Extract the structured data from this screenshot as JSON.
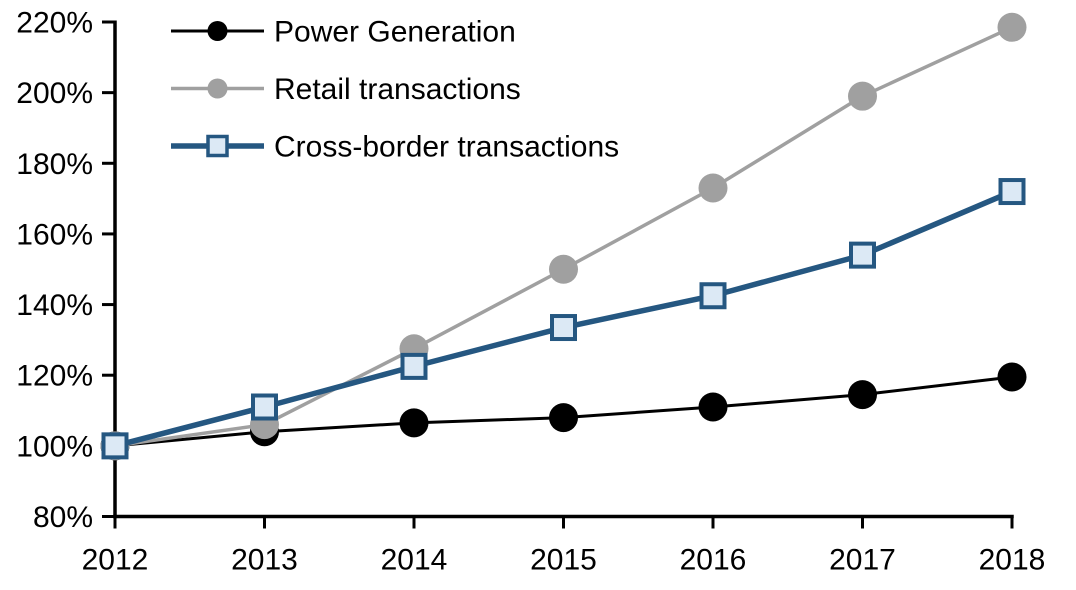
{
  "chart_data": {
    "type": "line",
    "title": "",
    "xlabel": "",
    "ylabel": "",
    "x": [
      2012,
      2013,
      2014,
      2015,
      2016,
      2017,
      2018
    ],
    "x_tick_labels": [
      "2012",
      "2013",
      "2014",
      "2015",
      "2016",
      "2017",
      "2018"
    ],
    "y_axis": {
      "min": 80,
      "max": 220,
      "step": 20,
      "tick_labels": [
        "80%",
        "100%",
        "120%",
        "140%",
        "160%",
        "180%",
        "200%",
        "220%"
      ]
    },
    "ylim": [
      80,
      220
    ],
    "grid": false,
    "legend_position": "top-left-inside",
    "background_color": "#ffffff",
    "axis_color": "#000000",
    "series": [
      {
        "name": "Power Generation",
        "color": "#000000",
        "marker": "circle",
        "marker_fill": "#000000",
        "line_width": 3,
        "values": [
          100,
          104,
          106.5,
          108,
          111,
          114.5,
          119.5
        ]
      },
      {
        "name": "Retail transactions",
        "color": "#A0A0A0",
        "marker": "circle",
        "marker_fill": "#A0A0A0",
        "line_width": 3.5,
        "values": [
          100,
          106,
          127.5,
          150,
          173,
          199,
          218.5
        ]
      },
      {
        "name": "Cross-border transactions",
        "color": "#255781",
        "marker": "square",
        "marker_fill": "#DCE9F5",
        "line_width": 5.5,
        "values": [
          100,
          111,
          122.5,
          133.5,
          142.5,
          154,
          172
        ]
      }
    ]
  }
}
